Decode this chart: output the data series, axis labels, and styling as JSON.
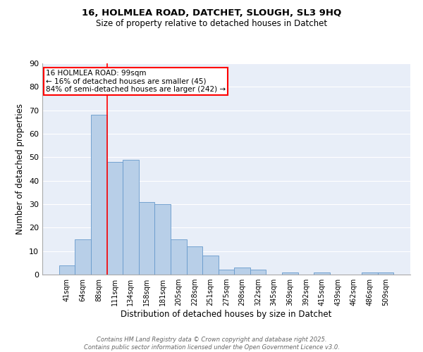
{
  "title_line1": "16, HOLMLEA ROAD, DATCHET, SLOUGH, SL3 9HQ",
  "title_line2": "Size of property relative to detached houses in Datchet",
  "xlabel": "Distribution of detached houses by size in Datchet",
  "ylabel": "Number of detached properties",
  "categories": [
    "41sqm",
    "64sqm",
    "88sqm",
    "111sqm",
    "134sqm",
    "158sqm",
    "181sqm",
    "205sqm",
    "228sqm",
    "251sqm",
    "275sqm",
    "298sqm",
    "322sqm",
    "345sqm",
    "369sqm",
    "392sqm",
    "415sqm",
    "439sqm",
    "462sqm",
    "486sqm",
    "509sqm"
  ],
  "values": [
    4,
    15,
    68,
    48,
    49,
    31,
    30,
    15,
    12,
    8,
    2,
    3,
    2,
    0,
    1,
    0,
    1,
    0,
    0,
    1,
    1
  ],
  "bar_color": "#b8cfe8",
  "bar_edge_color": "#6699cc",
  "annotation_line1": "16 HOLMLEA ROAD: 99sqm",
  "annotation_line2": "← 16% of detached houses are smaller (45)",
  "annotation_line3": "84% of semi-detached houses are larger (242) →",
  "annotation_box_color": "white",
  "annotation_box_edge_color": "red",
  "vline_color": "red",
  "vline_x": 2.5,
  "ylim": [
    0,
    90
  ],
  "yticks": [
    0,
    10,
    20,
    30,
    40,
    50,
    60,
    70,
    80,
    90
  ],
  "bg_color": "#e8eef8",
  "grid_color": "white",
  "footer_line1": "Contains HM Land Registry data © Crown copyright and database right 2025.",
  "footer_line2": "Contains public sector information licensed under the Open Government Licence v3.0."
}
